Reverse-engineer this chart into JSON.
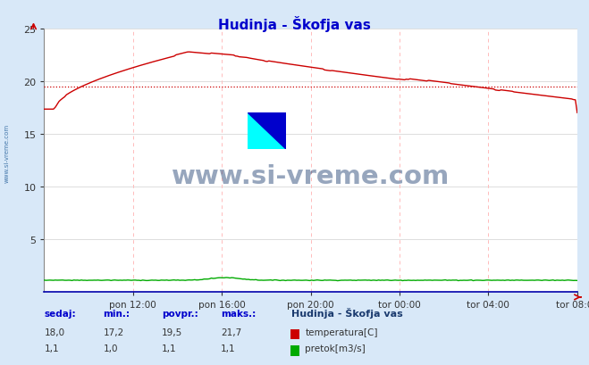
{
  "title": "Hudinja - Škofja vas",
  "title_color": "#0000cc",
  "bg_color": "#d8e8f8",
  "plot_bg_color": "#ffffff",
  "grid_color_h": "#dddddd",
  "grid_color_v": "#ffbbbb",
  "x_tick_labels": [
    "pon 12:00",
    "pon 16:00",
    "pon 20:00",
    "tor 00:00",
    "tor 04:00",
    "tor 08:00"
  ],
  "x_tick_positions": [
    0.1667,
    0.3333,
    0.5,
    0.6667,
    0.8333,
    1.0
  ],
  "ylim": [
    0,
    25
  ],
  "y_ticks": [
    0,
    5,
    10,
    15,
    20,
    25
  ],
  "temp_color": "#cc0000",
  "flow_color": "#00aa00",
  "avg_dotted_color": "#cc0000",
  "watermark_text": "www.si-vreme.com",
  "watermark_color": "#1a3a6e",
  "watermark_alpha": 0.45,
  "sidebar_text": "www.si-vreme.com",
  "sidebar_color": "#4477aa",
  "stats_color": "#0000cc",
  "legend_title": "Hudinja - Škofja vas",
  "legend_title_color": "#1a3a6e",
  "temp_label": "temperatura[C]",
  "flow_label": "pretok[m3/s]",
  "stats_headers": [
    "sedaj:",
    "min.:",
    "povpr.:",
    "maks.:"
  ],
  "stats_temp": [
    18.0,
    17.2,
    19.5,
    21.7
  ],
  "stats_flow": [
    1.1,
    1.0,
    1.1,
    1.1
  ],
  "temp_avg_value": 19.5,
  "flow_avg_value": 1.1
}
